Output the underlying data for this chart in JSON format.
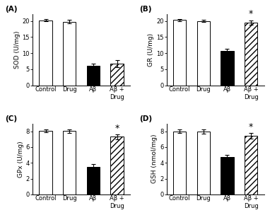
{
  "panels": [
    {
      "label": "(A)",
      "ylabel": "SOD (U/mg)",
      "ylim": [
        0,
        22
      ],
      "yticks": [
        0,
        5,
        10,
        15,
        20
      ],
      "categories": [
        "Control",
        "Drug",
        "Aβ",
        "Aβ +\nDrug"
      ],
      "values": [
        20.2,
        19.7,
        6.0,
        6.8
      ],
      "errors": [
        0.35,
        0.55,
        0.75,
        1.1
      ],
      "colors": [
        "white",
        "white",
        "black",
        "hatch"
      ],
      "star": false
    },
    {
      "label": "(B)",
      "ylabel": "GR (U/mg)",
      "ylim": [
        0,
        22
      ],
      "yticks": [
        0,
        5,
        10,
        15,
        20
      ],
      "categories": [
        "Control",
        "Drug",
        "Aβ",
        "Aβ +\nDrug"
      ],
      "values": [
        20.3,
        20.0,
        10.6,
        19.5
      ],
      "errors": [
        0.3,
        0.4,
        0.85,
        0.7
      ],
      "colors": [
        "white",
        "white",
        "black",
        "hatch"
      ],
      "star": true
    },
    {
      "label": "(C)",
      "ylabel": "GPx (U/mg)",
      "ylim": [
        0,
        9
      ],
      "yticks": [
        0,
        2,
        4,
        6,
        8
      ],
      "categories": [
        "Control",
        "Drug",
        "Aβ",
        "Aβ +\nDrug"
      ],
      "values": [
        8.05,
        8.05,
        3.5,
        7.3
      ],
      "errors": [
        0.18,
        0.22,
        0.35,
        0.28
      ],
      "colors": [
        "white",
        "white",
        "black",
        "hatch"
      ],
      "star": true
    },
    {
      "label": "(D)",
      "ylabel": "GSH (nmol/mg)",
      "ylim": [
        0,
        9
      ],
      "yticks": [
        0,
        2,
        4,
        6,
        8
      ],
      "categories": [
        "Control",
        "Drug",
        "Aβ",
        "Aβ +\nDrug"
      ],
      "values": [
        8.0,
        8.0,
        4.7,
        7.4
      ],
      "errors": [
        0.2,
        0.28,
        0.3,
        0.35
      ],
      "colors": [
        "white",
        "white",
        "black",
        "hatch"
      ],
      "star": true
    }
  ],
  "background_color": "#ffffff",
  "bar_edge_color": "black",
  "hatch_pattern": "////",
  "fontsize_ylabel": 6.5,
  "fontsize_tick": 6,
  "fontsize_panel": 7.5,
  "fontsize_star": 9,
  "bar_width": 0.55
}
